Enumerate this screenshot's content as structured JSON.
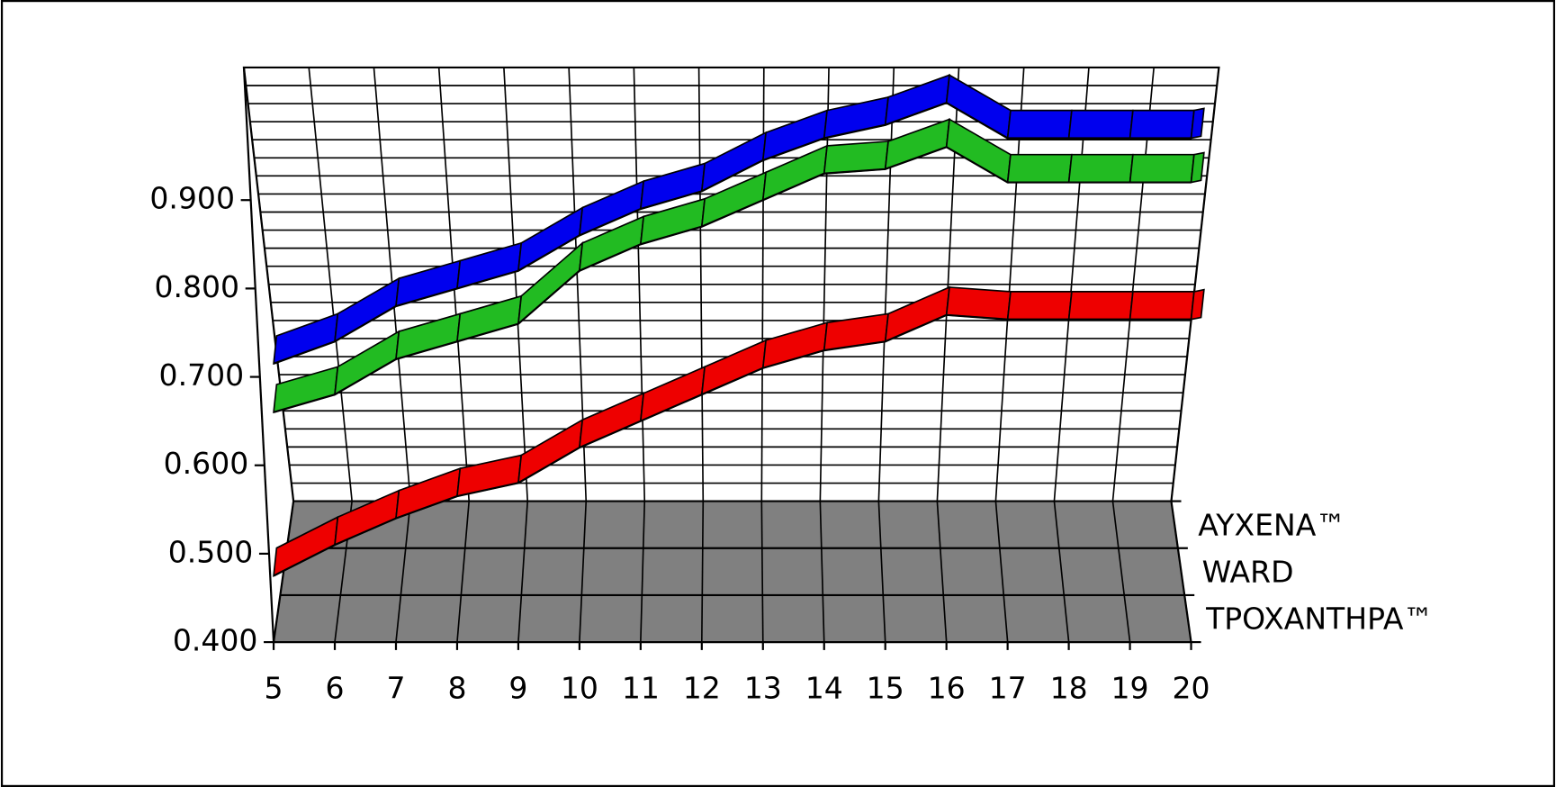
{
  "chart_data": {
    "type": "line3d",
    "x": [
      5,
      6,
      7,
      8,
      9,
      10,
      11,
      12,
      13,
      14,
      15,
      16,
      17,
      18,
      19,
      20
    ],
    "xlim": [
      5,
      20
    ],
    "xticks": [
      5,
      6,
      7,
      8,
      9,
      10,
      11,
      12,
      13,
      14,
      15,
      16,
      17,
      18,
      19,
      20
    ],
    "ylim": [
      0.4,
      1.05
    ],
    "yticks": [
      {
        "value": 0.4,
        "label": "0.400"
      },
      {
        "value": 0.5,
        "label": "0.500"
      },
      {
        "value": 0.6,
        "label": "0.600"
      },
      {
        "value": 0.7,
        "label": "0.700"
      },
      {
        "value": 0.8,
        "label": "0.800"
      },
      {
        "value": 0.9,
        "label": "0.900"
      }
    ],
    "grid": true,
    "series": [
      {
        "name": "AYXENA™",
        "color": "#0000ee",
        "values": [
          0.715,
          0.74,
          0.78,
          0.8,
          0.82,
          0.86,
          0.89,
          0.91,
          0.945,
          0.97,
          0.985,
          1.01,
          0.97,
          0.97,
          0.97,
          0.97
        ]
      },
      {
        "name": "WARD",
        "color": "#22bb22",
        "values": [
          0.66,
          0.68,
          0.72,
          0.74,
          0.76,
          0.82,
          0.85,
          0.87,
          0.9,
          0.93,
          0.935,
          0.96,
          0.92,
          0.92,
          0.92,
          0.92
        ]
      },
      {
        "name": "TPOXANTHPA™",
        "color": "#ee0000",
        "values": [
          0.475,
          0.51,
          0.54,
          0.565,
          0.58,
          0.62,
          0.65,
          0.68,
          0.71,
          0.73,
          0.74,
          0.77,
          0.765,
          0.765,
          0.765,
          0.765
        ]
      }
    ]
  }
}
